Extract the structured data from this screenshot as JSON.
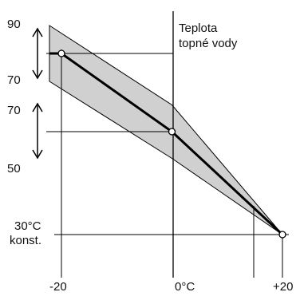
{
  "title": {
    "line1": "Teplota",
    "line2": "topné vody"
  },
  "y_labels": {
    "top_range_upper": "90",
    "top_range_lower": "70",
    "mid_range_upper": "70",
    "mid_range_lower": "50",
    "end_value_line1": "30°C",
    "end_value_line2": "konst."
  },
  "x_labels": {
    "left": "-20",
    "middle": "0°C",
    "right": "+20"
  },
  "colors": {
    "band_fill": "#d0d0d0",
    "line": "#000000"
  },
  "chart_data": {
    "type": "line",
    "x": [
      -20,
      0,
      20
    ],
    "series": [
      {
        "values": [
          80,
          60,
          30
        ]
      }
    ],
    "band": {
      "upper": [
        90,
        70,
        30
      ],
      "lower": [
        70,
        50,
        30
      ]
    },
    "ylabel": "Teplota topné vody",
    "grid": false
  }
}
